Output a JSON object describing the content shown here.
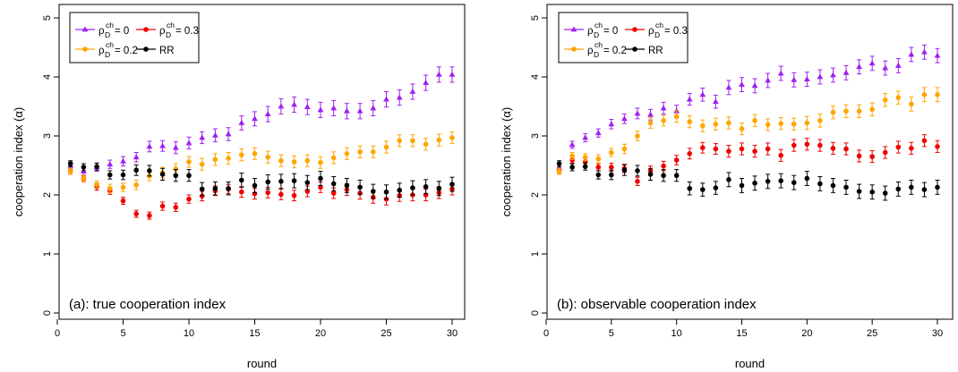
{
  "chart_data": [
    {
      "type": "scatter",
      "title": "",
      "panel_label": "(a): true cooperation index",
      "xlabel": "round",
      "ylabel": "cooperation index (α)",
      "xlim": [
        0,
        30
      ],
      "ylim": [
        0,
        5
      ],
      "xticks": [
        "0",
        "5",
        "10",
        "15",
        "20",
        "25",
        "30"
      ],
      "yticks": [
        "0",
        "1",
        "2",
        "3",
        "4",
        "5"
      ],
      "legend_position": "top-left",
      "grid": false,
      "x": [
        1,
        2,
        3,
        4,
        5,
        6,
        7,
        8,
        9,
        10,
        11,
        12,
        13,
        14,
        15,
        16,
        17,
        18,
        19,
        20,
        21,
        22,
        23,
        24,
        25,
        26,
        27,
        28,
        29,
        30
      ],
      "series": [
        {
          "name": "ρD ch = 0",
          "legend_base": "ρ",
          "legend_sub": "D",
          "legend_sup": "ch",
          "legend_value": "= 0",
          "color": "#a020f0",
          "marker": "triangle",
          "values": [
            2.5,
            2.4,
            2.47,
            2.52,
            2.57,
            2.64,
            2.82,
            2.83,
            2.8,
            2.88,
            2.97,
            3.01,
            3.03,
            3.22,
            3.29,
            3.37,
            3.5,
            3.53,
            3.49,
            3.44,
            3.47,
            3.42,
            3.42,
            3.47,
            3.62,
            3.65,
            3.75,
            3.9,
            4.04,
            4.04
          ],
          "err": [
            0.06,
            0.06,
            0.07,
            0.07,
            0.08,
            0.08,
            0.09,
            0.09,
            0.1,
            0.1,
            0.1,
            0.11,
            0.11,
            0.12,
            0.12,
            0.13,
            0.13,
            0.13,
            0.13,
            0.13,
            0.13,
            0.13,
            0.13,
            0.13,
            0.13,
            0.13,
            0.13,
            0.13,
            0.13,
            0.13
          ]
        },
        {
          "name": "ρD ch = 0.3",
          "legend_base": "ρ",
          "legend_sub": "D",
          "legend_sup": "ch",
          "legend_value": "= 0.3",
          "color": "#ee0000",
          "marker": "circle",
          "values": [
            2.4,
            2.27,
            2.14,
            2.07,
            1.9,
            1.68,
            1.65,
            1.81,
            1.79,
            1.93,
            1.98,
            2.07,
            2.1,
            2.05,
            2.02,
            2.04,
            2.01,
            1.99,
            2.06,
            2.13,
            2.03,
            2.09,
            2.03,
            1.96,
            1.93,
            1.99,
            2.0,
            2.0,
            2.04,
            2.1
          ],
          "err": [
            0.05,
            0.05,
            0.06,
            0.06,
            0.06,
            0.06,
            0.06,
            0.07,
            0.07,
            0.07,
            0.08,
            0.08,
            0.08,
            0.09,
            0.09,
            0.09,
            0.09,
            0.09,
            0.09,
            0.09,
            0.09,
            0.1,
            0.1,
            0.1,
            0.1,
            0.1,
            0.1,
            0.1,
            0.1,
            0.1
          ]
        },
        {
          "name": "ρD ch = 0.2",
          "legend_base": "ρ",
          "legend_sub": "D",
          "legend_sup": "ch",
          "legend_value": "= 0.2",
          "color": "#ffa500",
          "marker": "circle",
          "values": [
            2.4,
            2.28,
            2.18,
            2.11,
            2.13,
            2.17,
            2.32,
            2.38,
            2.44,
            2.56,
            2.52,
            2.6,
            2.62,
            2.68,
            2.7,
            2.64,
            2.58,
            2.56,
            2.58,
            2.55,
            2.63,
            2.7,
            2.73,
            2.73,
            2.81,
            2.92,
            2.92,
            2.86,
            2.93,
            2.97
          ],
          "err": [
            0.05,
            0.06,
            0.06,
            0.07,
            0.07,
            0.08,
            0.08,
            0.09,
            0.09,
            0.09,
            0.1,
            0.1,
            0.1,
            0.1,
            0.1,
            0.1,
            0.1,
            0.1,
            0.1,
            0.1,
            0.1,
            0.1,
            0.1,
            0.1,
            0.1,
            0.1,
            0.1,
            0.1,
            0.1,
            0.1
          ]
        },
        {
          "name": "RR",
          "legend_base": "RR",
          "legend_sub": "",
          "legend_sup": "",
          "legend_value": "",
          "color": "#000000",
          "marker": "circle",
          "values": [
            2.53,
            2.47,
            2.48,
            2.34,
            2.34,
            2.42,
            2.41,
            2.35,
            2.33,
            2.33,
            2.1,
            2.11,
            2.11,
            2.25,
            2.16,
            2.22,
            2.23,
            2.24,
            2.21,
            2.28,
            2.19,
            2.16,
            2.13,
            2.06,
            2.05,
            2.08,
            2.12,
            2.14,
            2.11,
            2.18
          ],
          "err": [
            0.05,
            0.06,
            0.06,
            0.07,
            0.08,
            0.09,
            0.09,
            0.1,
            0.1,
            0.1,
            0.11,
            0.11,
            0.11,
            0.12,
            0.12,
            0.12,
            0.12,
            0.12,
            0.12,
            0.12,
            0.12,
            0.12,
            0.12,
            0.12,
            0.12,
            0.12,
            0.12,
            0.12,
            0.12,
            0.12
          ]
        }
      ]
    },
    {
      "type": "scatter",
      "title": "",
      "panel_label": "(b): observable cooperation index",
      "xlabel": "round",
      "ylabel": "cooperation index (α)",
      "xlim": [
        0,
        30
      ],
      "ylim": [
        0,
        5
      ],
      "xticks": [
        "0",
        "5",
        "10",
        "15",
        "20",
        "25",
        "30"
      ],
      "yticks": [
        "0",
        "1",
        "2",
        "3",
        "4",
        "5"
      ],
      "legend_position": "top-left",
      "grid": false,
      "x": [
        1,
        2,
        3,
        4,
        5,
        6,
        7,
        8,
        9,
        10,
        11,
        12,
        13,
        14,
        15,
        16,
        17,
        18,
        19,
        20,
        21,
        22,
        23,
        24,
        25,
        26,
        27,
        28,
        29,
        30
      ],
      "series": [
        {
          "name": "ρD ch = 0",
          "legend_base": "ρ",
          "legend_sub": "D",
          "legend_sup": "ch",
          "legend_value": "= 0",
          "color": "#a020f0",
          "marker": "triangle",
          "values": [
            2.46,
            2.85,
            2.97,
            3.05,
            3.2,
            3.29,
            3.38,
            3.36,
            3.47,
            3.42,
            3.62,
            3.7,
            3.58,
            3.82,
            3.87,
            3.85,
            3.94,
            4.06,
            3.95,
            3.96,
            4.0,
            4.03,
            4.07,
            4.17,
            4.23,
            4.15,
            4.19,
            4.38,
            4.42,
            4.36
          ],
          "err": [
            0.06,
            0.06,
            0.07,
            0.07,
            0.08,
            0.08,
            0.09,
            0.09,
            0.1,
            0.1,
            0.1,
            0.11,
            0.11,
            0.12,
            0.12,
            0.12,
            0.12,
            0.12,
            0.12,
            0.12,
            0.12,
            0.12,
            0.12,
            0.12,
            0.12,
            0.12,
            0.12,
            0.12,
            0.12,
            0.12
          ]
        },
        {
          "name": "ρD ch = 0.3",
          "legend_base": "ρ",
          "legend_sub": "D",
          "legend_sup": "ch",
          "legend_value": "= 0.3",
          "color": "#ee0000",
          "marker": "circle",
          "values": [
            2.4,
            2.59,
            2.56,
            2.47,
            2.47,
            2.45,
            2.23,
            2.41,
            2.49,
            2.59,
            2.7,
            2.8,
            2.78,
            2.74,
            2.78,
            2.74,
            2.78,
            2.67,
            2.84,
            2.86,
            2.84,
            2.79,
            2.78,
            2.66,
            2.65,
            2.72,
            2.81,
            2.79,
            2.92,
            2.82
          ],
          "err": [
            0.05,
            0.05,
            0.06,
            0.06,
            0.07,
            0.07,
            0.07,
            0.08,
            0.08,
            0.08,
            0.09,
            0.09,
            0.09,
            0.1,
            0.1,
            0.1,
            0.1,
            0.1,
            0.1,
            0.1,
            0.1,
            0.1,
            0.1,
            0.1,
            0.1,
            0.1,
            0.1,
            0.1,
            0.1,
            0.1
          ]
        },
        {
          "name": "ρD ch = 0.2",
          "legend_base": "ρ",
          "legend_sub": "D",
          "legend_sup": "ch",
          "legend_value": "= 0.2",
          "color": "#ffa500",
          "marker": "circle",
          "values": [
            2.4,
            2.66,
            2.64,
            2.61,
            2.72,
            2.78,
            3.0,
            3.22,
            3.26,
            3.33,
            3.24,
            3.17,
            3.2,
            3.22,
            3.12,
            3.26,
            3.19,
            3.21,
            3.2,
            3.22,
            3.26,
            3.4,
            3.42,
            3.42,
            3.45,
            3.61,
            3.65,
            3.54,
            3.7,
            3.7
          ],
          "err": [
            0.05,
            0.06,
            0.06,
            0.07,
            0.07,
            0.08,
            0.08,
            0.09,
            0.09,
            0.1,
            0.1,
            0.1,
            0.1,
            0.1,
            0.1,
            0.1,
            0.1,
            0.1,
            0.1,
            0.11,
            0.11,
            0.11,
            0.11,
            0.11,
            0.11,
            0.11,
            0.11,
            0.12,
            0.12,
            0.12
          ]
        },
        {
          "name": "RR",
          "legend_base": "RR",
          "legend_sub": "",
          "legend_sup": "",
          "legend_value": "",
          "color": "#000000",
          "marker": "circle",
          "values": [
            2.53,
            2.47,
            2.48,
            2.34,
            2.34,
            2.42,
            2.41,
            2.35,
            2.33,
            2.33,
            2.11,
            2.09,
            2.12,
            2.26,
            2.16,
            2.2,
            2.23,
            2.24,
            2.21,
            2.28,
            2.19,
            2.16,
            2.13,
            2.06,
            2.05,
            2.03,
            2.1,
            2.13,
            2.09,
            2.13
          ],
          "err": [
            0.05,
            0.06,
            0.06,
            0.07,
            0.08,
            0.09,
            0.09,
            0.1,
            0.1,
            0.1,
            0.11,
            0.11,
            0.11,
            0.12,
            0.12,
            0.12,
            0.12,
            0.12,
            0.12,
            0.12,
            0.12,
            0.12,
            0.12,
            0.12,
            0.12,
            0.12,
            0.12,
            0.12,
            0.12,
            0.12
          ]
        }
      ]
    }
  ]
}
